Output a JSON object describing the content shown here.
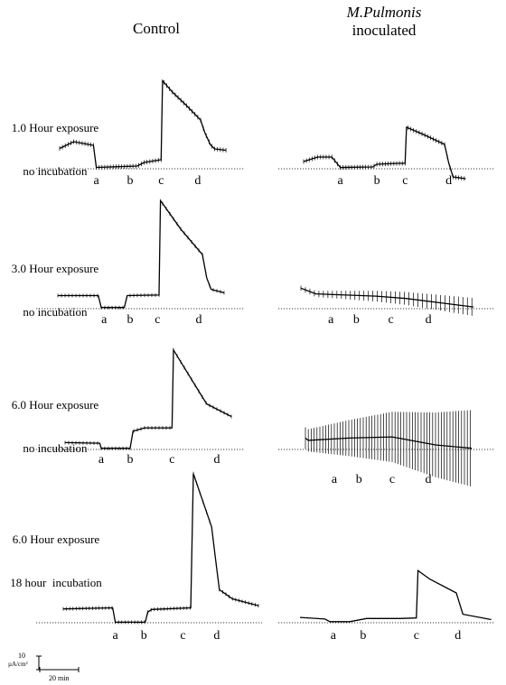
{
  "headers": {
    "control": "Control",
    "inoculated_line1": "M.Pulmonis",
    "inoculated_line2": "inoculated"
  },
  "scale_bar": {
    "y_value": "10",
    "y_unit": "µA/cm²",
    "x_label": "20 min"
  },
  "chart_data": [
    {
      "type": "line",
      "panel": "1.0 Hour exposure, no incubation — Control",
      "row_label_lines": [
        "1.0 Hour exposure",
        "no incubation"
      ],
      "x_unit": "min",
      "y_unit": "µA/cm²",
      "markers": [
        {
          "label": "a",
          "x": 52
        },
        {
          "label": "b",
          "x": 100
        },
        {
          "label": "c",
          "x": 144
        },
        {
          "label": "d",
          "x": 196
        }
      ],
      "x": [
        0,
        20,
        48,
        52,
        110,
        120,
        144,
        146,
        160,
        180,
        200,
        206,
        214,
        220,
        236
      ],
      "y": [
        4.5,
        6.0,
        5.2,
        0.3,
        0.6,
        1.4,
        2.0,
        19.5,
        17.0,
        14.0,
        10.8,
        8.0,
        5.3,
        4.4,
        4.1
      ]
    },
    {
      "type": "line",
      "panel": "1.0 Hour exposure, no incubation — M.Pulmonis inoculated",
      "x_unit": "min",
      "y_unit": "µA/cm²",
      "markers": [
        {
          "label": "a",
          "x": 52
        },
        {
          "label": "b",
          "x": 104
        },
        {
          "label": "c",
          "x": 144
        },
        {
          "label": "d",
          "x": 206
        }
      ],
      "x": [
        0,
        20,
        40,
        52,
        98,
        104,
        134,
        144,
        146,
        170,
        200,
        206,
        212,
        230
      ],
      "y": [
        1.6,
        2.6,
        2.6,
        0.3,
        0.4,
        1.0,
        1.2,
        1.2,
        9.2,
        7.6,
        5.4,
        1.2,
        -1.8,
        -2.2
      ]
    },
    {
      "type": "line",
      "panel": "3.0 Hour exposure, no incubation — Control",
      "row_label_lines": [
        "3.0 Hour exposure",
        "no incubation"
      ],
      "x_unit": "min",
      "y_unit": "µA/cm²",
      "markers": [
        {
          "label": "a",
          "x": 64
        },
        {
          "label": "b",
          "x": 100
        },
        {
          "label": "c",
          "x": 138
        },
        {
          "label": "d",
          "x": 195
        }
      ],
      "x": [
        0,
        56,
        60,
        92,
        96,
        140,
        142,
        170,
        200,
        206,
        212,
        230
      ],
      "y": [
        2.3,
        2.3,
        0.2,
        0.2,
        2.3,
        2.4,
        19.0,
        14.0,
        9.5,
        5.4,
        3.4,
        2.8
      ]
    },
    {
      "type": "line",
      "panel": "3.0 Hour exposure, no incubation — M.Pulmonis inoculated",
      "x_unit": "min",
      "y_unit": "µA/cm²",
      "markers": [
        {
          "label": "a",
          "x": 40
        },
        {
          "label": "b",
          "x": 74
        },
        {
          "label": "c",
          "x": 120
        },
        {
          "label": "d",
          "x": 170
        }
      ],
      "x": [
        0,
        20,
        60,
        100,
        140,
        200,
        230
      ],
      "y": [
        3.6,
        2.6,
        2.4,
        2.2,
        1.8,
        0.8,
        0.3
      ]
    },
    {
      "type": "line",
      "panel": "6.0 Hour exposure, no incubation — Control",
      "row_label_lines": [
        "6.0 Hour exposure",
        "no incubation"
      ],
      "x_unit": "min",
      "y_unit": "µA/cm²",
      "markers": [
        {
          "label": "a",
          "x": 50
        },
        {
          "label": "b",
          "x": 90
        },
        {
          "label": "c",
          "x": 148
        },
        {
          "label": "d",
          "x": 210
        }
      ],
      "x": [
        0,
        48,
        50,
        90,
        94,
        110,
        148,
        150,
        190,
        196,
        230
      ],
      "y": [
        1.2,
        1.1,
        0.2,
        0.2,
        3.2,
        3.8,
        3.8,
        17.5,
        9.2,
        8.0,
        5.8
      ]
    },
    {
      "type": "line",
      "panel": "6.0 Hour exposure, no incubation — M.Pulmonis inoculated",
      "x_unit": "min",
      "y_unit": "µA/cm²",
      "markers": [
        {
          "label": "a",
          "x": 40
        },
        {
          "label": "b",
          "x": 74
        },
        {
          "label": "c",
          "x": 120
        },
        {
          "label": "d",
          "x": 170
        }
      ],
      "x": [
        0,
        4,
        60,
        120,
        180,
        230
      ],
      "y": [
        2.0,
        1.6,
        2.0,
        2.2,
        0.8,
        0.2
      ]
    },
    {
      "type": "line",
      "panel": "6.0 Hour exposure, 18 hour incubation — Control",
      "row_label_lines": [
        "6.0 Hour exposure",
        "18 hour  incubation"
      ],
      "x_unit": "min",
      "y_unit": "µA/cm²",
      "markers": [
        {
          "label": "a",
          "x": 80
        },
        {
          "label": "b",
          "x": 124
        },
        {
          "label": "c",
          "x": 184
        },
        {
          "label": "d",
          "x": 236
        }
      ],
      "x": [
        0,
        76,
        80,
        126,
        130,
        136,
        196,
        200,
        228,
        234,
        240,
        260,
        300
      ],
      "y": [
        2.6,
        2.8,
        0.1,
        0.1,
        2.0,
        2.5,
        2.8,
        28.0,
        18.0,
        12.0,
        6.2,
        4.5,
        3.2
      ]
    },
    {
      "type": "line",
      "panel": "6.0 Hour exposure, 18 hour incubation — M.Pulmonis inoculated",
      "x_unit": "min",
      "y_unit": "µA/cm²",
      "markers": [
        {
          "label": "a",
          "x": 40
        },
        {
          "label": "b",
          "x": 76
        },
        {
          "label": "c",
          "x": 140
        },
        {
          "label": "d",
          "x": 190
        }
      ],
      "x": [
        0,
        30,
        36,
        60,
        80,
        120,
        140,
        142,
        156,
        188,
        196,
        230
      ],
      "y": [
        1.0,
        0.7,
        0.2,
        0.2,
        0.8,
        0.8,
        0.9,
        9.8,
        8.2,
        5.6,
        1.6,
        0.6
      ]
    }
  ]
}
